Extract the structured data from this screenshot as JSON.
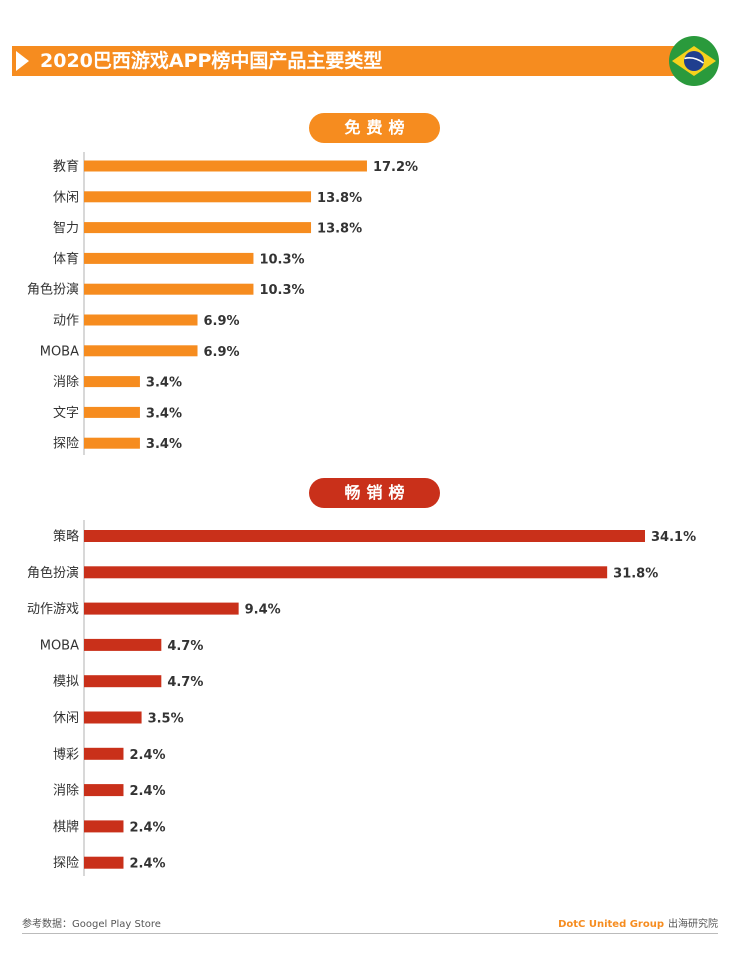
{
  "header": {
    "title": "2020巴西游戏APP榜中国产品主要类型",
    "flag_icon": "brazil-flag-icon"
  },
  "colors": {
    "orange": "#f68c1f",
    "red": "#c9301a",
    "axis": "#b0b0b0",
    "label": "#333333"
  },
  "chart_data": [
    {
      "type": "bar",
      "orientation": "horizontal",
      "title": "免费榜",
      "color": "#f68c1f",
      "unit": "%",
      "xlim": [
        0,
        34.1
      ],
      "categories": [
        "教育",
        "休闲",
        "智力",
        "体育",
        "角色扮演",
        "动作",
        "MOBA",
        "消除",
        "文字",
        "探险"
      ],
      "values": [
        17.2,
        13.8,
        13.8,
        10.3,
        10.3,
        6.9,
        6.9,
        3.4,
        3.4,
        3.4
      ]
    },
    {
      "type": "bar",
      "orientation": "horizontal",
      "title": "畅销榜",
      "color": "#c9301a",
      "unit": "%",
      "xlim": [
        0,
        34.1
      ],
      "categories": [
        "策略",
        "角色扮演",
        "动作游戏",
        "MOBA",
        "模拟",
        "休闲",
        "博彩",
        "消除",
        "棋牌",
        "探险"
      ],
      "values": [
        34.1,
        31.8,
        9.4,
        4.7,
        4.7,
        3.5,
        2.4,
        2.4,
        2.4,
        2.4
      ]
    }
  ],
  "footer": {
    "source": "参考数据：Googel Play Store",
    "brand": "DotC United Group",
    "brand_suffix": "出海研究院"
  }
}
